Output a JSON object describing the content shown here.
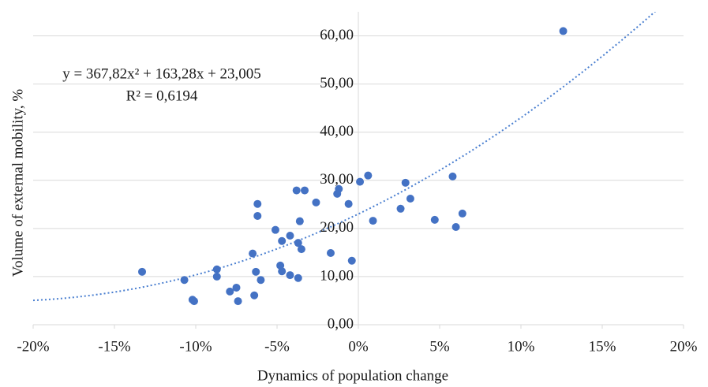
{
  "chart_data": {
    "type": "scatter",
    "x_label": "Dynamics of population change",
    "y_label": "Volume of external mobility, %",
    "x": [
      -13.3,
      -10.7,
      -10.2,
      -10.1,
      -8.7,
      -8.7,
      -7.9,
      -7.5,
      -7.4,
      -6.5,
      -6.4,
      -6.2,
      -6.2,
      -6.3,
      -6.0,
      -5.1,
      -4.8,
      -4.7,
      -4.7,
      -4.2,
      -4.2,
      -3.8,
      -3.7,
      -3.7,
      -3.6,
      -3.5,
      -3.3,
      -2.6,
      -1.7,
      -1.3,
      -1.2,
      -0.6,
      -0.4,
      0.1,
      0.6,
      0.9,
      2.6,
      2.9,
      3.2,
      4.7,
      5.8,
      6.0,
      6.4,
      12.6
    ],
    "y": [
      11.0,
      9.3,
      5.2,
      4.9,
      11.5,
      10.0,
      6.9,
      7.7,
      4.9,
      14.8,
      6.1,
      25.1,
      22.6,
      11.0,
      9.3,
      19.7,
      12.3,
      17.4,
      11.1,
      18.5,
      10.3,
      27.9,
      9.7,
      17.0,
      21.5,
      15.7,
      27.9,
      25.4,
      14.9,
      27.2,
      28.2,
      25.1,
      13.3,
      29.7,
      31.0,
      21.6,
      24.1,
      29.5,
      26.2,
      21.8,
      30.8,
      20.3,
      23.1,
      61.0
    ],
    "color": "#4472c4",
    "xlim": [
      -20,
      20
    ],
    "ylim": [
      0,
      65
    ],
    "xticks": [
      {
        "value": -20,
        "label": "-20%"
      },
      {
        "value": -15,
        "label": "-15%"
      },
      {
        "value": -10,
        "label": "-10%"
      },
      {
        "value": -5,
        "label": "-5%"
      },
      {
        "value": 0,
        "label": "0%"
      },
      {
        "value": 5,
        "label": "5%"
      },
      {
        "value": 10,
        "label": "10%"
      },
      {
        "value": 15,
        "label": "15%"
      },
      {
        "value": 20,
        "label": "20%"
      }
    ],
    "yticks": [
      {
        "value": 0,
        "label": "0,00"
      },
      {
        "value": 10,
        "label": "10,00"
      },
      {
        "value": 20,
        "label": "20,00"
      },
      {
        "value": 30,
        "label": "30,00"
      },
      {
        "value": 40,
        "label": "40,00"
      },
      {
        "value": 50,
        "label": "50,00"
      },
      {
        "value": 60,
        "label": "60,00"
      }
    ],
    "grid": true,
    "trendline": {
      "type": "polynomial",
      "coefficients": [
        367.82,
        163.28,
        23.005
      ],
      "equation": "y = 367,82x² + 163,28x + 23,005",
      "r_squared": "R² = 0,6194",
      "color": "#4a7fd0"
    }
  }
}
